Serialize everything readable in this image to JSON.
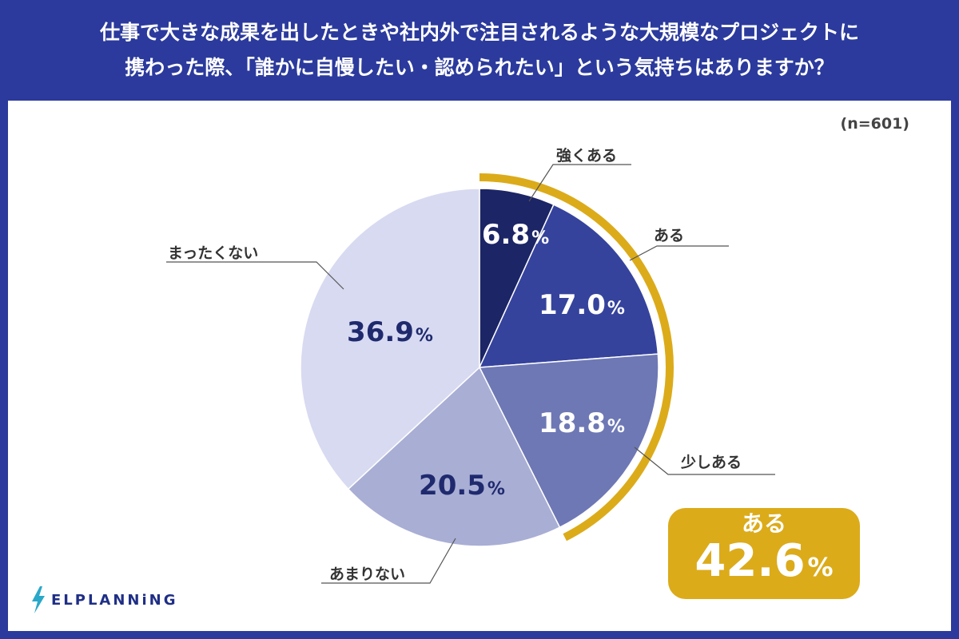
{
  "header": {
    "line1": "仕事で大きな成果を出したときや社内外で注目されるような大規模なプロジェクトに",
    "line2": "携わった際、「誰かに自慢したい・認められたい」という気持ちはありますか？"
  },
  "sample_size": "(n=601)",
  "chart_data": {
    "type": "pie",
    "title": "仕事で大きな成果を出したときや社内外で注目されるような大規模なプロジェクトに携わった際、「誰かに自慢したい・認められたい」という気持ちはありますか？",
    "unit": "%",
    "slices": [
      {
        "label": "強くある",
        "value": 6.8,
        "value_text": "6.8",
        "color": "#1c2566",
        "text_color": "#ffffff"
      },
      {
        "label": "ある",
        "value": 17.0,
        "value_text": "17.0",
        "color": "#35439d",
        "text_color": "#ffffff"
      },
      {
        "label": "少しある",
        "value": 18.8,
        "value_text": "18.8",
        "color": "#6e78b5",
        "text_color": "#ffffff"
      },
      {
        "label": "あまりない",
        "value": 20.5,
        "value_text": "20.5",
        "color": "#a9aed5",
        "text_color": "#1f2a6e"
      },
      {
        "label": "まったくない",
        "value": 36.9,
        "value_text": "36.9",
        "color": "#d8daf1",
        "text_color": "#1f2a6e"
      }
    ],
    "highlight": {
      "label": "ある",
      "value": 42.6,
      "value_text": "42.6",
      "includes": [
        "強くある",
        "ある",
        "少しある"
      ],
      "color": "#dcab1a"
    }
  },
  "brand": {
    "name": "ELPLANNiNG",
    "icon": "lightning-icon",
    "color": "#1f2f86",
    "accent": "#2aa8c9"
  }
}
